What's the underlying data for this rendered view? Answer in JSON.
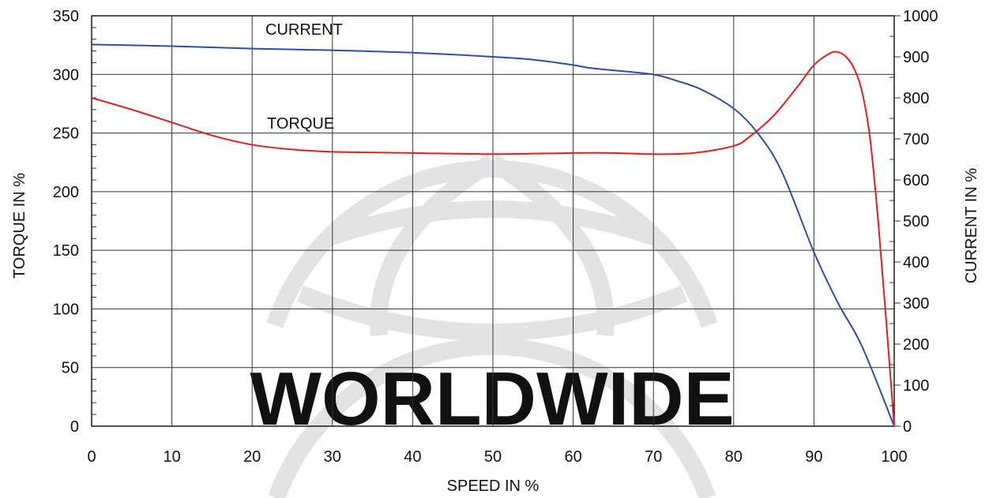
{
  "watermark": {
    "text": "WORLDWIDE"
  },
  "chart_data": {
    "type": "line",
    "title": "",
    "xlabel": "SPEED IN %",
    "ylabel_left": "TORQUE IN %",
    "ylabel_right": "CURRENT IN %",
    "xlim": [
      0,
      100
    ],
    "ylim_left": [
      0,
      350
    ],
    "ylim_right": [
      0,
      1000
    ],
    "x_ticks": [
      0,
      10,
      20,
      30,
      40,
      50,
      60,
      70,
      80,
      90,
      100
    ],
    "y_left_ticks": [
      0,
      50,
      100,
      150,
      200,
      250,
      300,
      350
    ],
    "y_right_ticks": [
      0,
      100,
      200,
      300,
      400,
      500,
      600,
      700,
      800,
      900,
      1000
    ],
    "grid": true,
    "series": [
      {
        "name": "CURRENT",
        "axis": "right",
        "color": "#2f4ea2",
        "x": [
          0,
          10,
          20,
          30,
          40,
          50,
          55,
          60,
          62,
          65,
          70,
          73,
          76,
          80,
          83,
          86,
          90,
          93,
          96,
          100
        ],
        "y": [
          930,
          926,
          920,
          916,
          910,
          900,
          893,
          880,
          873,
          867,
          857,
          841,
          820,
          774,
          714,
          620,
          424,
          300,
          194,
          0
        ]
      },
      {
        "name": "TORQUE",
        "axis": "left",
        "color": "#e02020",
        "x": [
          0,
          5,
          10,
          15,
          20,
          25,
          30,
          40,
          50,
          60,
          65,
          70,
          75,
          80,
          82,
          85,
          88,
          90,
          92,
          93,
          94,
          95,
          96,
          97,
          98,
          99,
          100
        ],
        "y": [
          280,
          270,
          259,
          248,
          240,
          236,
          234,
          233,
          232,
          233,
          233,
          232,
          233,
          239,
          247,
          265,
          290,
          308,
          318,
          319,
          315,
          305,
          285,
          245,
          175,
          90,
          0
        ]
      }
    ]
  }
}
